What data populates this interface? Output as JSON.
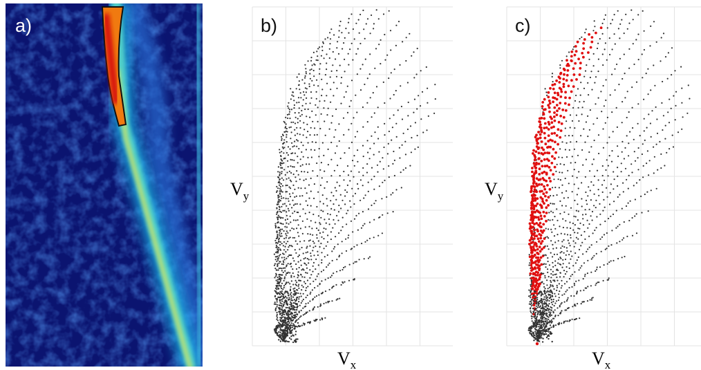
{
  "panels": [
    {
      "label": "a)"
    },
    {
      "label": "b)",
      "y_axis": {
        "symbol": "V",
        "subscript": "y"
      },
      "x_axis": {
        "symbol": "V",
        "subscript": "x"
      }
    },
    {
      "label": "c)",
      "y_axis": {
        "symbol": "V",
        "subscript": "y"
      },
      "x_axis": {
        "symbol": "V",
        "subscript": "x"
      }
    }
  ]
}
